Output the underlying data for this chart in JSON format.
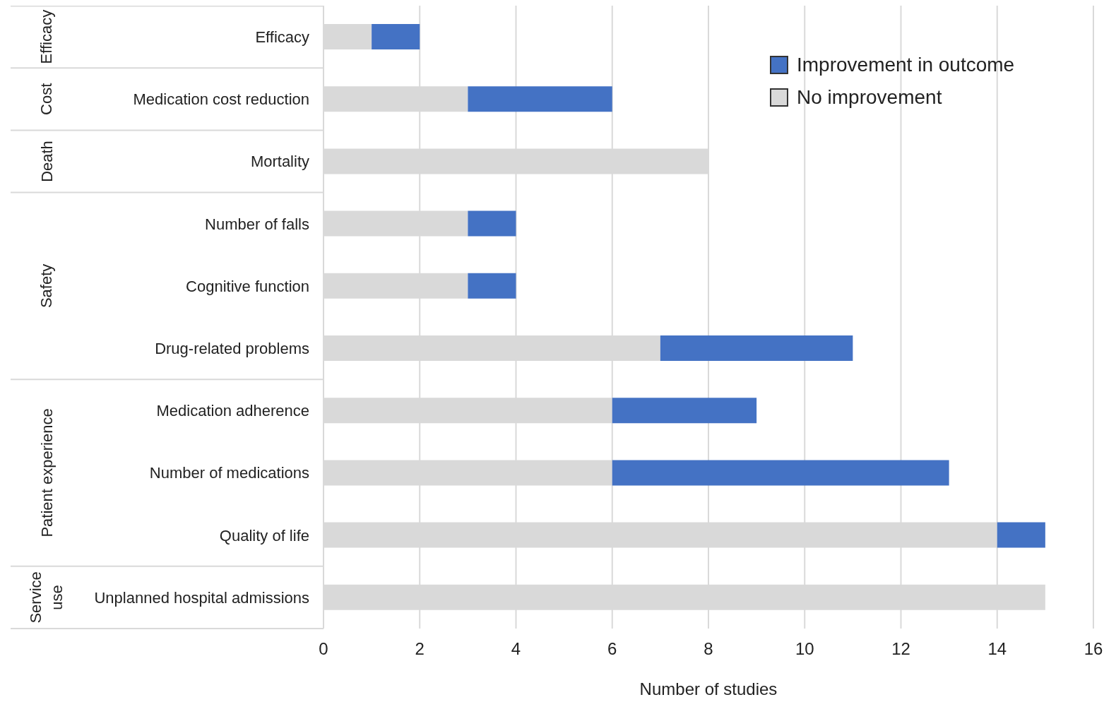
{
  "chart_data": {
    "type": "bar",
    "orientation": "horizontal",
    "stacked": true,
    "categories": [
      "Efficacy",
      "Medication cost reduction",
      "Mortality",
      "Number of falls",
      "Cognitive function",
      "Drug-related problems",
      "Medication adherence",
      "Number of medications",
      "Quality of life",
      "Unplanned hospital admissions"
    ],
    "series": [
      {
        "name": "No improvement",
        "color": "#d9d9d9",
        "values": [
          1,
          3,
          8,
          3,
          3,
          7,
          6,
          6,
          14,
          15
        ]
      },
      {
        "name": "Improvement in outcome",
        "color": "#4472c4",
        "values": [
          1,
          3,
          0,
          1,
          1,
          4,
          3,
          7,
          1,
          0
        ]
      }
    ],
    "xlim": [
      0,
      16
    ],
    "xticks": [
      0,
      2,
      4,
      6,
      8,
      10,
      12,
      14,
      16
    ],
    "xlabel": "Number of studies",
    "grid": "x",
    "legend": "top right",
    "annotations": [
      "Efficacy",
      "Cost",
      "Death",
      "Safety",
      "Patient experience",
      "Service use"
    ]
  }
}
